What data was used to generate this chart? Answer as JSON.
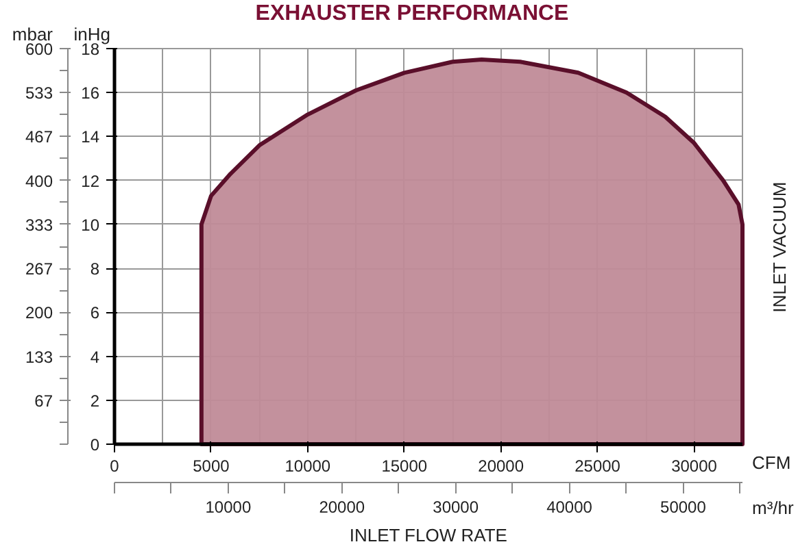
{
  "chart_data": {
    "type": "area",
    "title": "EXHAUSTER PERFORMANCE",
    "xlabel": "CFM",
    "x2label": "m³/hr",
    "ylabel": "inHg",
    "y2label": "mbar",
    "annotations": [
      "INLET FLOW RATE",
      "INLET VACUUM"
    ],
    "x": [
      4500,
      5000,
      6000,
      7500,
      10000,
      12500,
      15000,
      17500,
      19000,
      21000,
      24000,
      26500,
      28500,
      30000,
      31500,
      32300,
      32500
    ],
    "series": [
      {
        "color": "#c08b98",
        "values": [
          10,
          11.3,
          12.3,
          13.6,
          15.0,
          16.1,
          16.9,
          17.4,
          17.5,
          17.4,
          16.9,
          16.0,
          14.9,
          13.7,
          12.0,
          10.9,
          10
        ]
      }
    ],
    "xlim": [
      0,
      32500
    ],
    "xticks": [
      0,
      5000,
      10000,
      15000,
      20000,
      25000,
      30000
    ],
    "x2lim": [
      0,
      55218
    ],
    "x2ticks": [
      10000,
      20000,
      30000,
      40000,
      50000
    ],
    "ylim": [
      0,
      18
    ],
    "yticks": [
      0,
      2,
      4,
      6,
      8,
      10,
      12,
      14,
      16,
      18
    ],
    "y2lim": [
      0,
      600
    ],
    "y2ticks": [
      {
        "value": 66.67,
        "label": "67"
      },
      {
        "value": 133.33,
        "label": "133"
      },
      200,
      {
        "value": 266.67,
        "label": "267"
      },
      {
        "value": 333.33,
        "label": "333"
      },
      400,
      {
        "value": 466.67,
        "label": "467"
      },
      {
        "value": 533.33,
        "label": "533"
      },
      600
    ],
    "grid": true
  }
}
